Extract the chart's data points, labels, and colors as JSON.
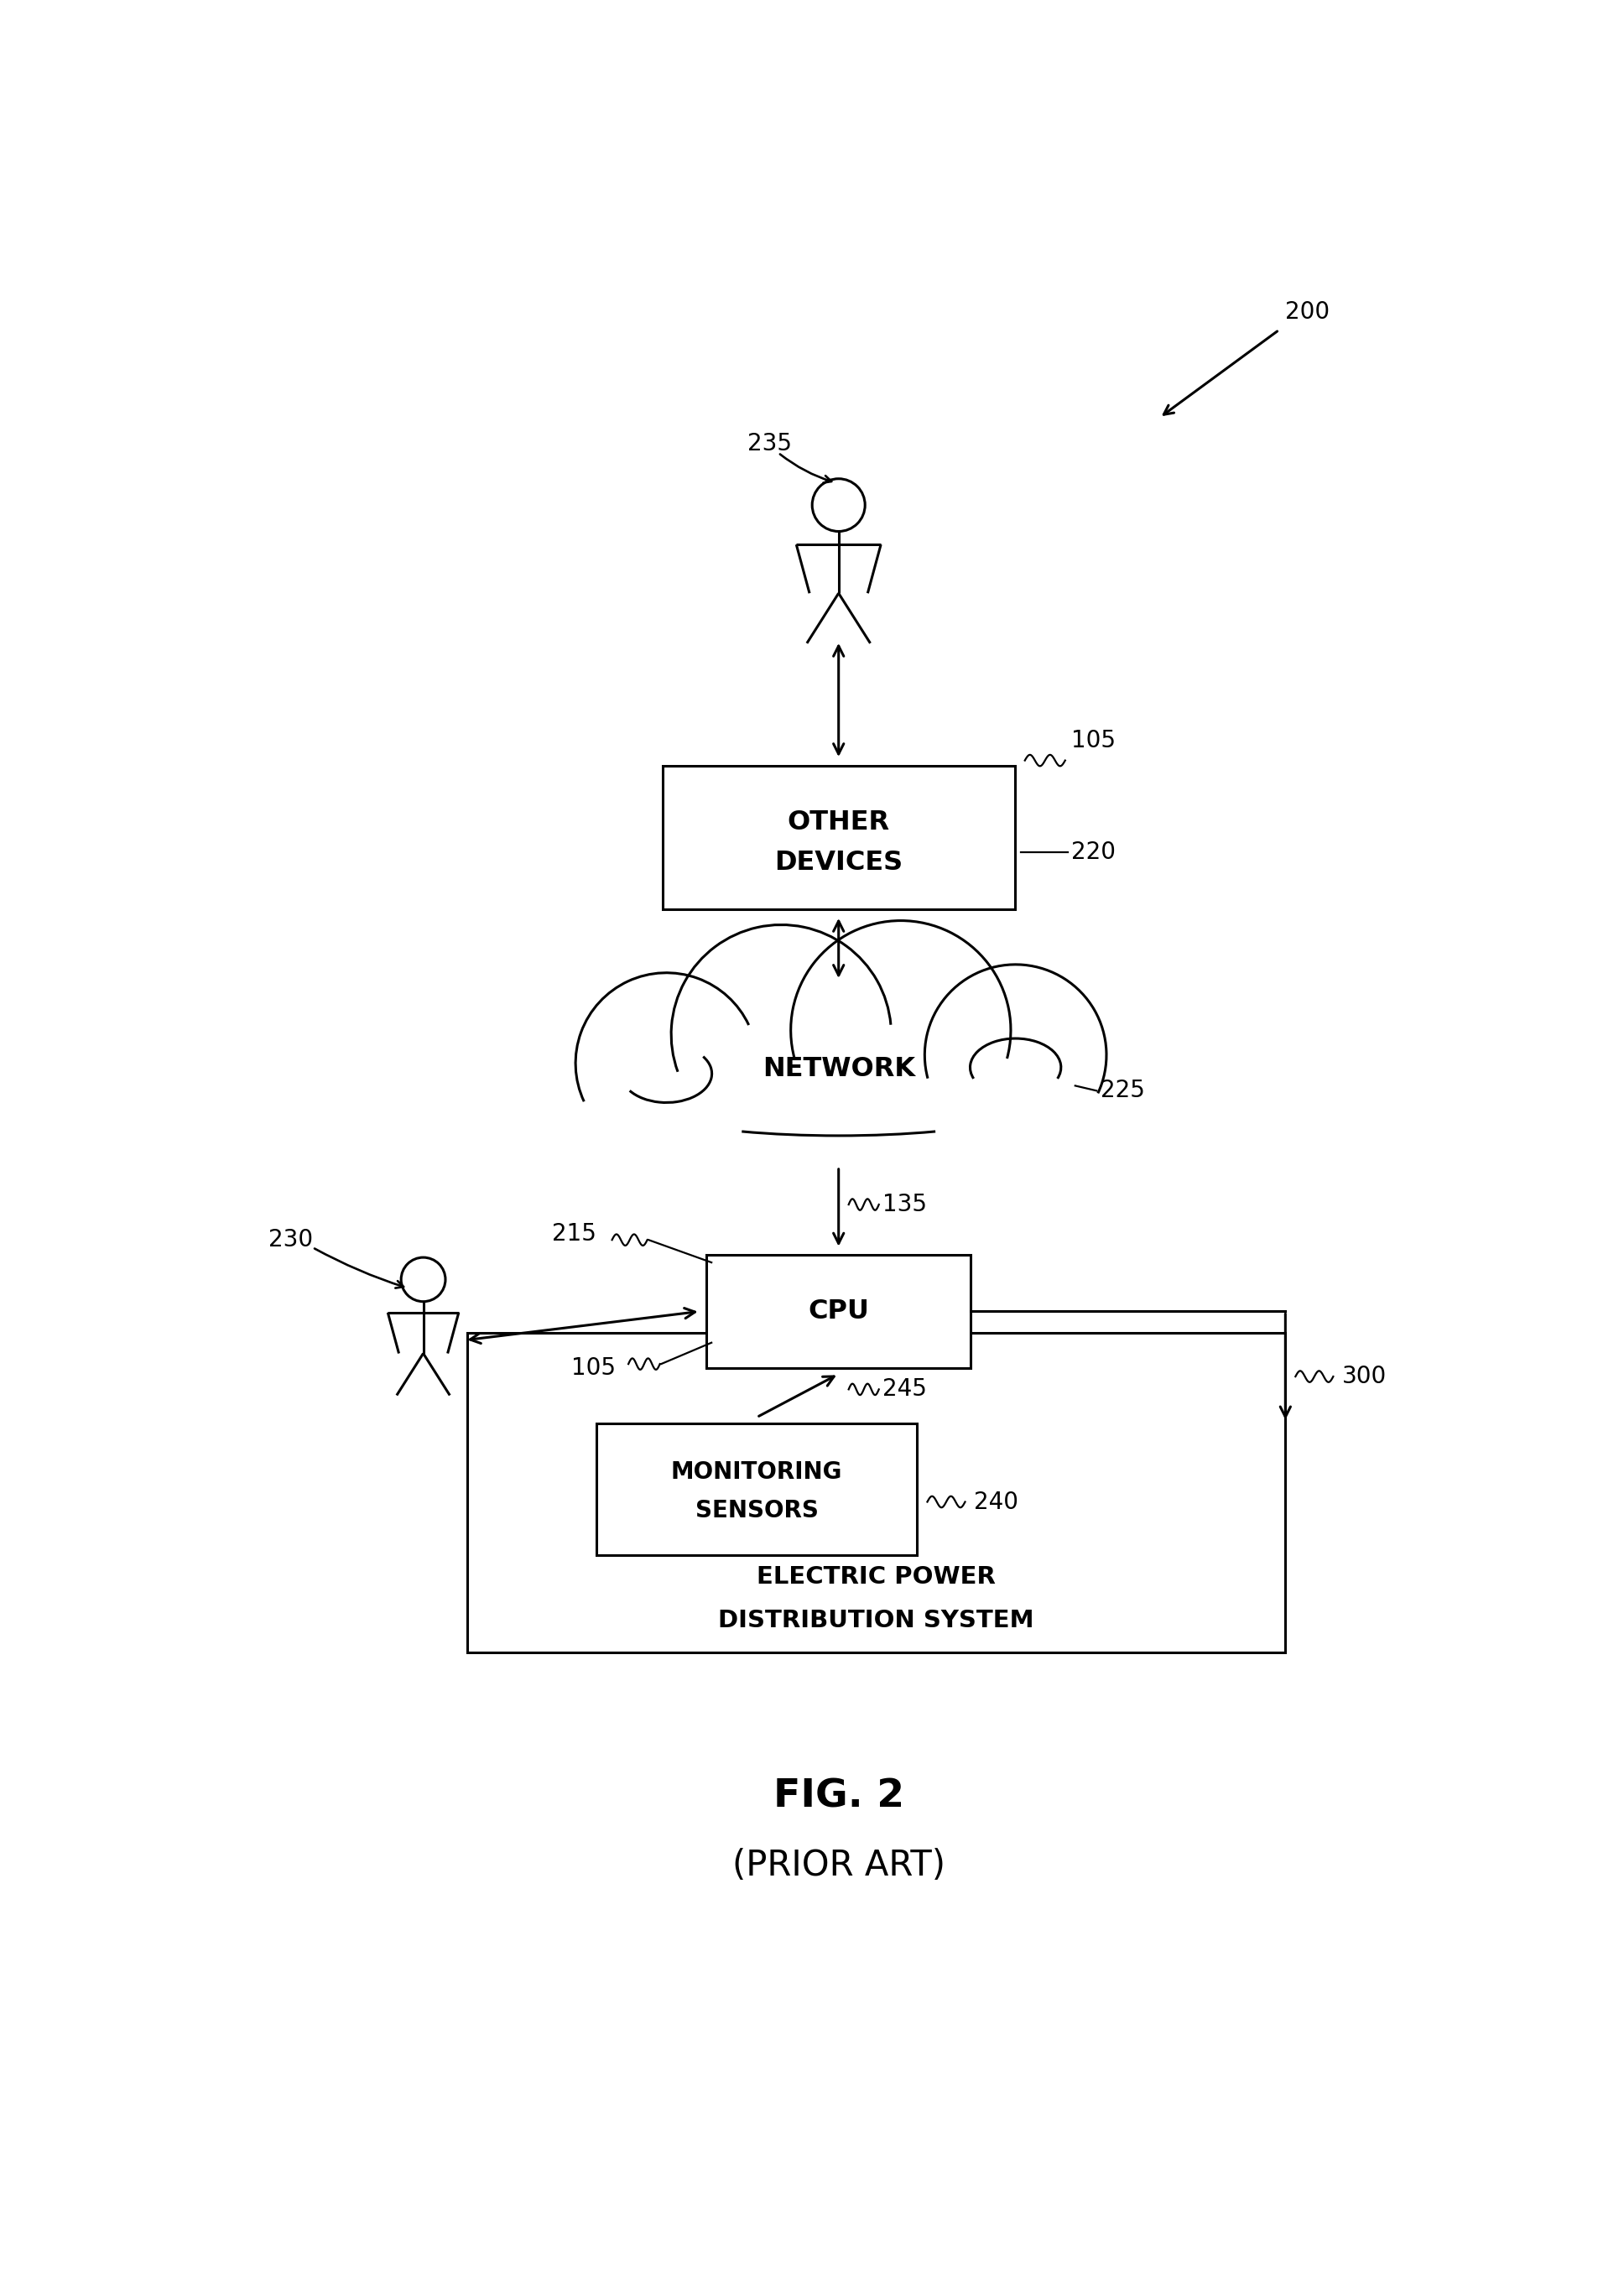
{
  "bg_color": "#ffffff",
  "line_color": "#000000",
  "fig_label": "FIG. 2",
  "fig_sublabel": "(PRIOR ART)",
  "label_200": "200",
  "label_235": "235",
  "label_105_top": "105",
  "label_220": "220",
  "label_225": "225",
  "label_230": "230",
  "label_215": "215",
  "label_105_cpu": "105",
  "label_135": "135",
  "label_245": "245",
  "label_300": "300",
  "label_240": "240",
  "other_devices_text_1": "OTHER",
  "other_devices_text_2": "DEVICES",
  "network_text": "NETWORK",
  "cpu_text": "CPU",
  "monitoring_sensors_text_1": "MONITORING",
  "monitoring_sensors_text_2": "SENSORS",
  "epds_text_1": "ELECTRIC POWER",
  "epds_text_2": "DISTRIBUTION SYSTEM"
}
